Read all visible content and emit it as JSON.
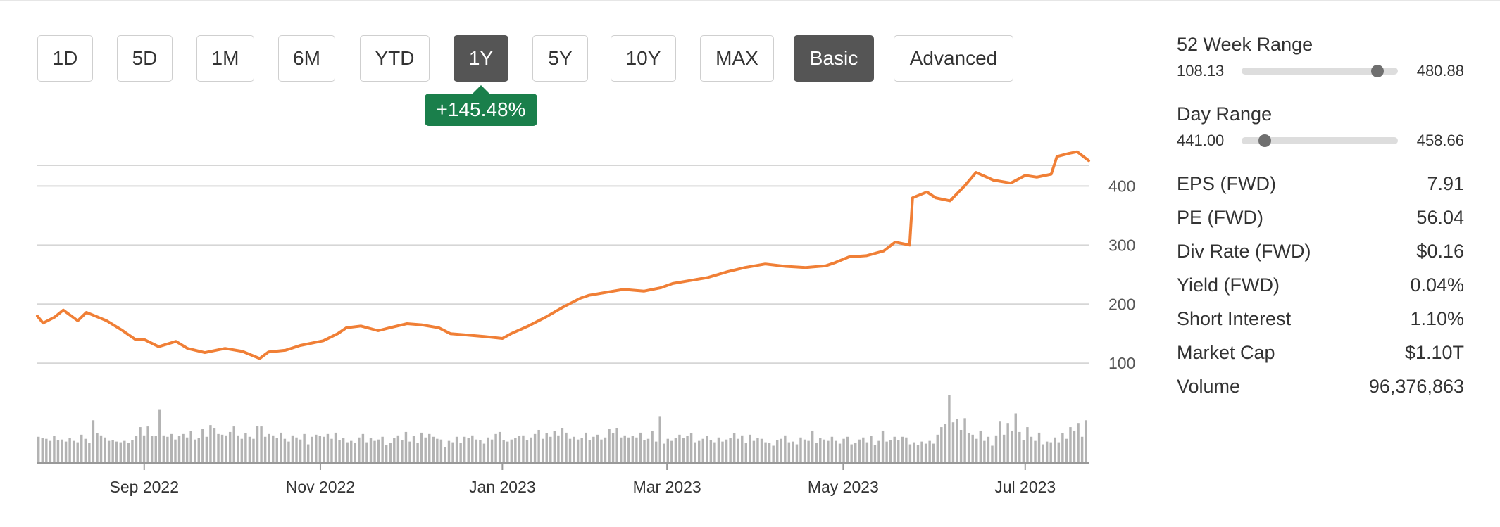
{
  "period_tabs": [
    {
      "label": "1D",
      "active": false
    },
    {
      "label": "5D",
      "active": false
    },
    {
      "label": "1M",
      "active": false
    },
    {
      "label": "6M",
      "active": false
    },
    {
      "label": "YTD",
      "active": false
    },
    {
      "label": "1Y",
      "active": true
    },
    {
      "label": "5Y",
      "active": false
    },
    {
      "label": "10Y",
      "active": false
    },
    {
      "label": "MAX",
      "active": false
    }
  ],
  "mode_tabs": [
    {
      "label": "Basic",
      "active": true
    },
    {
      "label": "Advanced",
      "active": false
    }
  ],
  "change_badge": "+145.48%",
  "colors": {
    "line": "#f07f36",
    "volume": "#b3b3b3",
    "badge": "#1a7f4b",
    "active_tab": "#555555",
    "grid": "#d6d6d6"
  },
  "chart_data": {
    "type": "line",
    "y_ticks": [
      100,
      200,
      300,
      400
    ],
    "ylim": [
      80,
      435
    ],
    "x_ticks": [
      {
        "label": "Sep 2022",
        "x": "2022-09-01"
      },
      {
        "label": "Nov 2022",
        "x": "2022-11-01"
      },
      {
        "label": "Jan 2023",
        "x": "2023-01-03"
      },
      {
        "label": "Mar 2023",
        "x": "2023-03-01"
      },
      {
        "label": "May 2023",
        "x": "2023-05-01"
      },
      {
        "label": "Jul 2023",
        "x": "2023-07-03"
      }
    ],
    "xlim": [
      "2022-07-26",
      "2023-07-25"
    ],
    "grid": true,
    "series": [
      {
        "x": [
          "2022-07-26",
          "2022-07-28",
          "2022-08-01",
          "2022-08-04",
          "2022-08-09",
          "2022-08-12",
          "2022-08-16",
          "2022-08-19",
          "2022-08-24",
          "2022-08-29",
          "2022-09-01",
          "2022-09-06",
          "2022-09-12",
          "2022-09-16",
          "2022-09-22",
          "2022-09-29",
          "2022-10-05",
          "2022-10-11",
          "2022-10-14",
          "2022-10-20",
          "2022-10-25",
          "2022-10-28",
          "2022-11-02",
          "2022-11-07",
          "2022-11-10",
          "2022-11-15",
          "2022-11-21",
          "2022-11-25",
          "2022-12-01",
          "2022-12-06",
          "2022-12-12",
          "2022-12-16",
          "2022-12-21",
          "2022-12-28",
          "2023-01-03",
          "2023-01-06",
          "2023-01-12",
          "2023-01-18",
          "2023-01-24",
          "2023-01-30",
          "2023-02-02",
          "2023-02-08",
          "2023-02-14",
          "2023-02-21",
          "2023-02-27",
          "2023-03-03",
          "2023-03-09",
          "2023-03-15",
          "2023-03-22",
          "2023-03-28",
          "2023-04-04",
          "2023-04-11",
          "2023-04-18",
          "2023-04-25",
          "2023-04-28",
          "2023-05-03",
          "2023-05-09",
          "2023-05-15",
          "2023-05-19",
          "2023-05-24",
          "2023-05-25",
          "2023-05-30",
          "2023-06-02",
          "2023-06-07",
          "2023-06-12",
          "2023-06-16",
          "2023-06-22",
          "2023-06-28",
          "2023-07-03",
          "2023-07-07",
          "2023-07-12",
          "2023-07-14",
          "2023-07-18",
          "2023-07-21",
          "2023-07-25"
        ],
        "y": [
          180,
          168,
          178,
          190,
          172,
          186,
          178,
          172,
          157,
          140,
          140,
          128,
          137,
          125,
          118,
          125,
          120,
          108,
          119,
          122,
          130,
          133,
          138,
          150,
          160,
          163,
          155,
          160,
          167,
          165,
          160,
          150,
          148,
          145,
          142,
          150,
          163,
          178,
          195,
          210,
          215,
          220,
          225,
          222,
          228,
          235,
          240,
          245,
          255,
          262,
          268,
          264,
          262,
          265,
          270,
          280,
          282,
          290,
          305,
          300,
          380,
          390,
          380,
          375,
          400,
          423,
          410,
          405,
          418,
          415,
          420,
          450,
          455,
          458,
          443
        ]
      }
    ],
    "volume": [
      38,
      36,
      35,
      32,
      39,
      33,
      34,
      31,
      36,
      32,
      30,
      41,
      35,
      29,
      62,
      43,
      40,
      37,
      32,
      33,
      31,
      30,
      32,
      29,
      33,
      39,
      52,
      40,
      53,
      39,
      39,
      77,
      40,
      38,
      42,
      34,
      39,
      42,
      37,
      46,
      34,
      36,
      49,
      38,
      55,
      50,
      42,
      41,
      40,
      45,
      53,
      40,
      35,
      43,
      38,
      35,
      54,
      53,
      38,
      42,
      40,
      36,
      44,
      35,
      31,
      40,
      37,
      34,
      42,
      27,
      38,
      41,
      39,
      38,
      42,
      35,
      44,
      33,
      36,
      30,
      32,
      29,
      37,
      42,
      30,
      36,
      32,
      34,
      38,
      26,
      29,
      36,
      40,
      33,
      45,
      31,
      39,
      29,
      44,
      37,
      42,
      38,
      35,
      34,
      23,
      32,
      30,
      38,
      29,
      38,
      36,
      40,
      34,
      33,
      28,
      37,
      34,
      42,
      45,
      33,
      31,
      34,
      36,
      39,
      40,
      33,
      37,
      42,
      48,
      35,
      43,
      38,
      46,
      40,
      51,
      44,
      35,
      38,
      34,
      36,
      44,
      33,
      38,
      41,
      34,
      37,
      49,
      43,
      51,
      37,
      40,
      37,
      39,
      37,
      44,
      33,
      35,
      46,
      31,
      68,
      28,
      35,
      32,
      36,
      41,
      36,
      39,
      43,
      30,
      32,
      35,
      39,
      33,
      30,
      37,
      31,
      34,
      36,
      43,
      35,
      40,
      29,
      41,
      32,
      36,
      35,
      30,
      29,
      25,
      33,
      35,
      40,
      30,
      31,
      27,
      37,
      34,
      32,
      47,
      29,
      36,
      34,
      32,
      38,
      32,
      28,
      35,
      38,
      27,
      29,
      34,
      37,
      30,
      39,
      26,
      32,
      47,
      31,
      33,
      38,
      33,
      38,
      37,
      27,
      30,
      26,
      31,
      28,
      32,
      28,
      41,
      52,
      57,
      98,
      59,
      64,
      48,
      65,
      43,
      41,
      35,
      47,
      32,
      38,
      25,
      40,
      60,
      41,
      58,
      47,
      72,
      45,
      33,
      52,
      38,
      32,
      44,
      27,
      31,
      30,
      37,
      30,
      43,
      35,
      52,
      47,
      58,
      38,
      62
    ]
  },
  "stats": {
    "week52": {
      "title": "52 Week Range",
      "low": "108.13",
      "high": "480.88",
      "position": 0.87
    },
    "day": {
      "title": "Day Range",
      "low": "441.00",
      "high": "458.66",
      "position": 0.15
    },
    "rows": [
      {
        "label": "EPS (FWD)",
        "value": "7.91"
      },
      {
        "label": "PE (FWD)",
        "value": "56.04"
      },
      {
        "label": "Div Rate (FWD)",
        "value": "$0.16"
      },
      {
        "label": "Yield (FWD)",
        "value": "0.04%"
      },
      {
        "label": "Short Interest",
        "value": "1.10%"
      },
      {
        "label": "Market Cap",
        "value": "$1.10T"
      },
      {
        "label": "Volume",
        "value": "96,376,863"
      }
    ]
  }
}
